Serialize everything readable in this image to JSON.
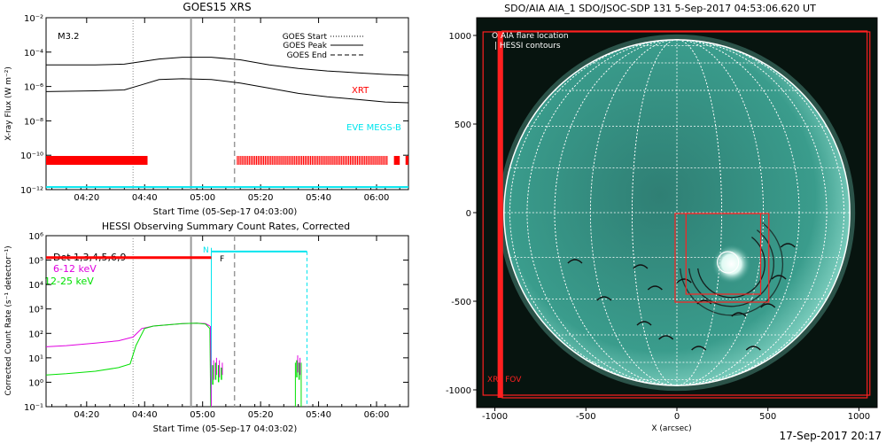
{
  "colors": {
    "axis": "#000000",
    "goes_curves": "#000000",
    "xrt": "#ff0000",
    "eve": "#00e5ee",
    "hessi_det": "#ff0000",
    "hessi_6_12": "#e000e0",
    "hessi_12_25": "#00e000",
    "attenuator": "#00e5ee",
    "aia_disk": "#3a9c8c",
    "aia_bg": "#07140f",
    "fov": "#ff2020",
    "grid": "#ffffff"
  },
  "footer": {
    "timestamp": "17-Sep-2017 20:17"
  },
  "chart_data": [
    {
      "type": "line",
      "id": "goes",
      "title": "GOES15 XRS",
      "xlabel": "Start Time (05-Sep-17 04:03:00)",
      "ylabel": "X-ray Flux (W m⁻²)",
      "flare_class": "M3.2",
      "scale": "log",
      "xlim_min": [
        3,
        128
      ],
      "ylim_exp": [
        -12,
        -2
      ],
      "x_ticks": [
        {
          "min": 17,
          "label": "04:20"
        },
        {
          "min": 37,
          "label": "04:40"
        },
        {
          "min": 57,
          "label": "05:00"
        },
        {
          "min": 77,
          "label": "05:20"
        },
        {
          "min": 97,
          "label": "05:40"
        },
        {
          "min": 117,
          "label": "06:00"
        }
      ],
      "y_ticks": [
        {
          "exp": -2,
          "label": "10⁻²"
        },
        {
          "exp": -4,
          "label": "10⁻⁴"
        },
        {
          "exp": -6,
          "label": "10⁻⁶"
        },
        {
          "exp": -8,
          "label": "10⁻⁸"
        },
        {
          "exp": -10,
          "label": "10⁻¹⁰"
        },
        {
          "exp": -12,
          "label": "10⁻¹²"
        }
      ],
      "legend": [
        {
          "name": "GOES Start",
          "style": "dotted"
        },
        {
          "name": "GOES Peak",
          "style": "solid"
        },
        {
          "name": "GOES End",
          "style": "dashed"
        }
      ],
      "event_lines_min": {
        "start": 33,
        "peak": 53,
        "end": 68
      },
      "series": [
        {
          "name": "long",
          "x": [
            3,
            20,
            30,
            36,
            42,
            50,
            60,
            70,
            80,
            90,
            100,
            110,
            120,
            128
          ],
          "y_exp": [
            -4.75,
            -4.75,
            -4.7,
            -4.55,
            -4.4,
            -4.3,
            -4.3,
            -4.45,
            -4.75,
            -4.95,
            -5.1,
            -5.2,
            -5.3,
            -5.35
          ]
        },
        {
          "name": "short",
          "x": [
            3,
            20,
            30,
            36,
            42,
            50,
            60,
            70,
            80,
            90,
            100,
            110,
            120,
            128
          ],
          "y_exp": [
            -6.3,
            -6.25,
            -6.2,
            -5.9,
            -5.6,
            -5.55,
            -5.6,
            -5.8,
            -6.1,
            -6.4,
            -6.6,
            -6.75,
            -6.9,
            -6.95
          ]
        }
      ],
      "instrument_labels": [
        "XRT",
        "EVE MEGS-B"
      ],
      "xrt_segments_min": [
        [
          3,
          38
        ]
      ],
      "xrt_tick_region_min": [
        69,
        121
      ],
      "xrt_extra_min": [
        [
          123,
          125
        ],
        [
          127,
          128
        ]
      ]
    },
    {
      "type": "line",
      "id": "hessi",
      "title": "HESSI Observing Summary Count Rates, Corrected",
      "xlabel": "Start Time (05-Sep-17 04:03:02)",
      "ylabel": "Corrected Count Rate (s⁻¹ detector⁻¹)",
      "scale": "log",
      "xlim_min": [
        3,
        128
      ],
      "ylim_exp": [
        -1,
        6
      ],
      "x_ticks": [
        {
          "min": 17,
          "label": "04:20"
        },
        {
          "min": 37,
          "label": "04:40"
        },
        {
          "min": 57,
          "label": "05:00"
        },
        {
          "min": 77,
          "label": "05:20"
        },
        {
          "min": 97,
          "label": "05:40"
        },
        {
          "min": 117,
          "label": "06:00"
        }
      ],
      "y_ticks": [
        {
          "exp": 6,
          "label": "10⁶"
        },
        {
          "exp": 5,
          "label": "10⁵"
        },
        {
          "exp": 4,
          "label": "10⁴"
        },
        {
          "exp": 3,
          "label": "10³"
        },
        {
          "exp": 2,
          "label": "10²"
        },
        {
          "exp": 1,
          "label": "10¹"
        },
        {
          "exp": 0,
          "label": "10⁰"
        },
        {
          "exp": -1,
          "label": "10⁻¹"
        }
      ],
      "legend": [
        {
          "name": "Det 1,3,4,5,6,9"
        },
        {
          "name": "6-12 keV"
        },
        {
          "name": "12-25 keV"
        }
      ],
      "markers": [
        "N",
        "F"
      ],
      "event_lines_min": {
        "start": 33,
        "peak": 53,
        "end": 68
      },
      "attenuator_min": [
        60,
        93
      ],
      "series": [
        {
          "name": "6-12 keV",
          "x": [
            3,
            10,
            20,
            28,
            33,
            36,
            40,
            45,
            50,
            55,
            58,
            59.5
          ],
          "y_exp": [
            1.45,
            1.5,
            1.6,
            1.7,
            1.85,
            2.2,
            2.3,
            2.35,
            2.4,
            2.42,
            2.4,
            2.3
          ]
        },
        {
          "name": "12-25 keV",
          "x": [
            3,
            10,
            20,
            28,
            32,
            34,
            37,
            40,
            45,
            50,
            55,
            58,
            59.5
          ],
          "y_exp": [
            0.3,
            0.35,
            0.45,
            0.6,
            0.75,
            1.5,
            2.2,
            2.3,
            2.35,
            2.4,
            2.42,
            2.38,
            2.2
          ]
        },
        {
          "name": "det_flat",
          "x": [
            3,
            60
          ],
          "y_exp": [
            5.1,
            5.1
          ]
        }
      ]
    },
    {
      "type": "image",
      "id": "aia",
      "title": "SDO/AIA AIA_1 SDO/JSOC-SDP 131  5-Sep-2017 04:53:06.620 UT",
      "xlabel": "X (arcsec)",
      "xlim": [
        -1100,
        1100
      ],
      "ylim": [
        -1100,
        1100
      ],
      "x_ticks": [
        -1000,
        -500,
        0,
        500,
        1000
      ],
      "y_ticks": [
        1000,
        500,
        0,
        -500,
        -1000
      ],
      "legend": [
        {
          "name": "O AIA flare location"
        },
        {
          "name": "| HESSI contours"
        }
      ],
      "xrt_fov_label": "XRT FOV",
      "solar_radius_arcsec": 950,
      "flare_center_arcsec": [
        300,
        -290
      ],
      "boxes_arcsec": [
        [
          -960,
          -1045,
          1045,
          1025
        ],
        [
          -1065,
          -1030,
          1060,
          1020
        ],
        [
          -10,
          -505,
          505,
          -5
        ],
        [
          50,
          -460,
          460,
          -5
        ]
      ]
    }
  ]
}
